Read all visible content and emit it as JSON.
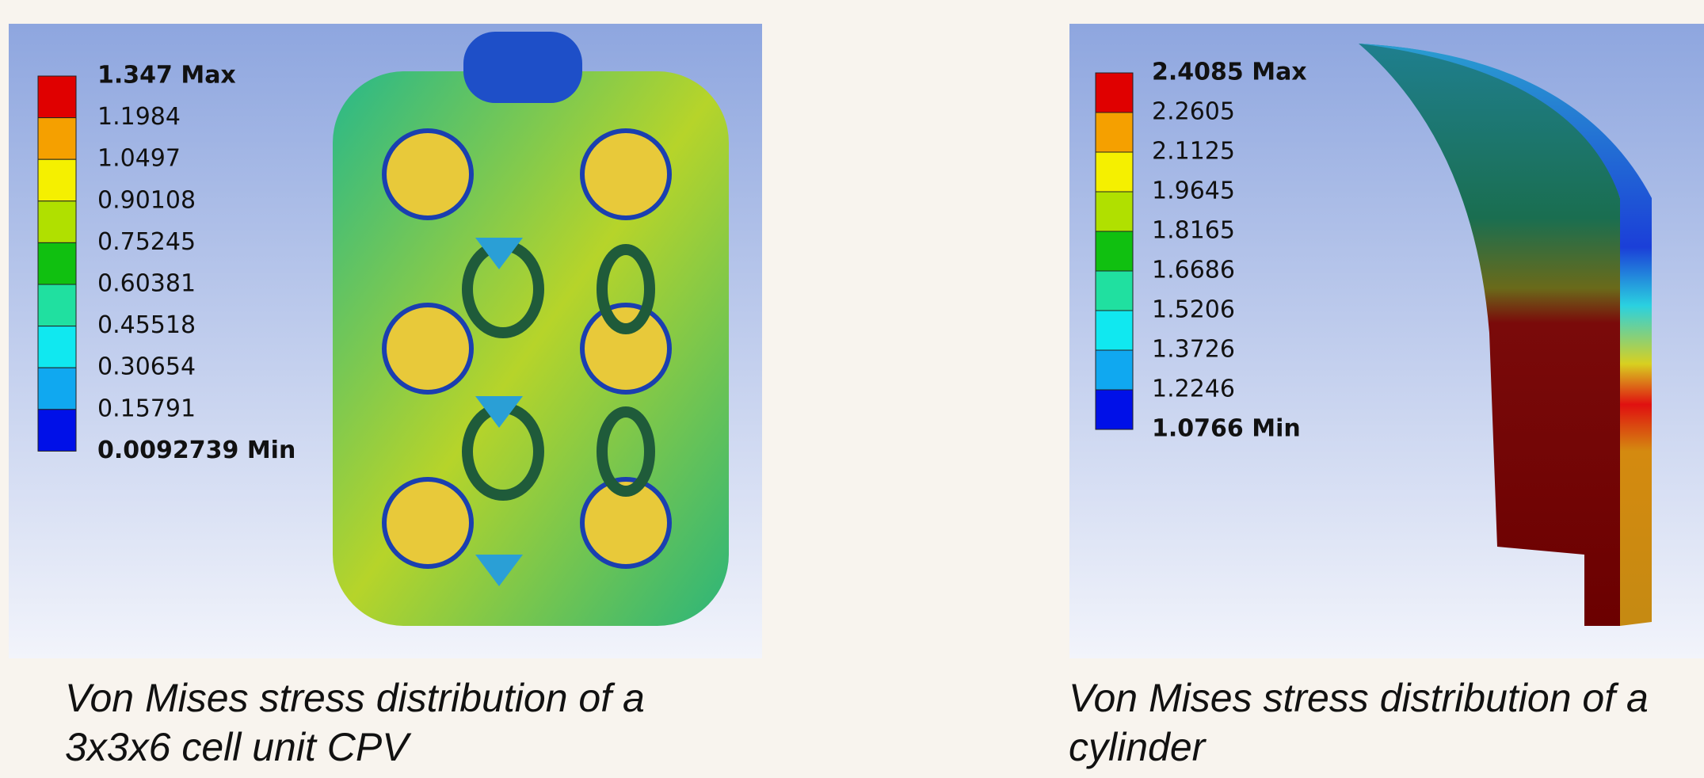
{
  "panels": [
    {
      "legend": {
        "max": "1.347 Max",
        "levels": [
          "1.1984",
          "1.0497",
          "0.90108",
          "0.75245",
          "0.60381",
          "0.45518",
          "0.30654",
          "0.15791"
        ],
        "min": "0.0092739 Min"
      },
      "caption": [
        "Von Mises stress distribution of a",
        "3x3x6 cell unit CPV"
      ]
    },
    {
      "legend": {
        "max": "2.4085 Max",
        "levels": [
          "2.2605",
          "2.1125",
          "1.9645",
          "1.8165",
          "1.6686",
          "1.5206",
          "1.3726",
          "1.2246"
        ],
        "min": "1.0766 Min"
      },
      "caption": [
        "Von Mises stress distribution of a",
        "cylinder"
      ]
    }
  ]
}
